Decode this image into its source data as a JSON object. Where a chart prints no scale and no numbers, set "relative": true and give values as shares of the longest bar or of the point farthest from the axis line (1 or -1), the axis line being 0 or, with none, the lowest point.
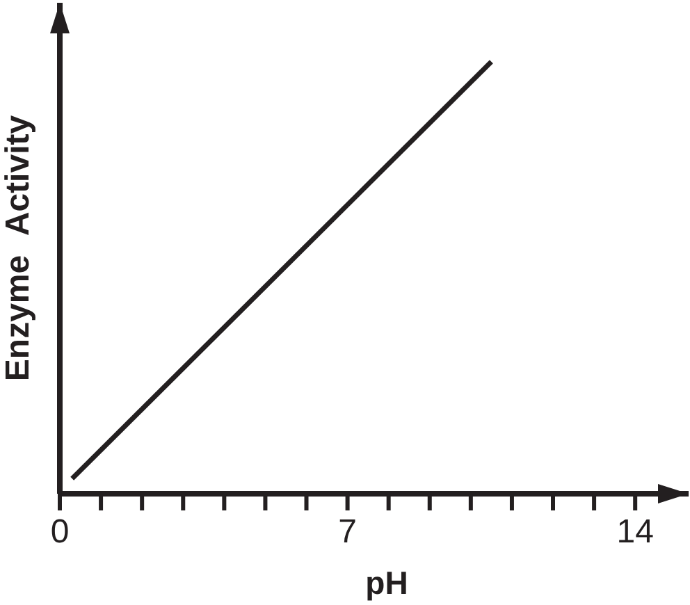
{
  "chart_data": {
    "type": "line",
    "xlabel": "pH",
    "ylabel": "Enzyme Activity",
    "relative": true,
    "xlim": [
      0,
      15.3
    ],
    "xticks": [
      0,
      {
        "value": 1,
        "label": null
      },
      {
        "value": 2,
        "label": null
      },
      {
        "value": 3,
        "label": null
      },
      {
        "value": 4,
        "label": null
      },
      {
        "value": 5,
        "label": null
      },
      {
        "value": 6,
        "label": null
      },
      7,
      {
        "value": 8,
        "label": null
      },
      {
        "value": 9,
        "label": null
      },
      {
        "value": 10,
        "label": null
      },
      {
        "value": 11,
        "label": null
      },
      {
        "value": 12,
        "label": null
      },
      {
        "value": 13,
        "label": null
      },
      14
    ],
    "series": [
      {
        "color": "#231f20",
        "x": [
          0.3,
          10.5
        ],
        "values": [
          0.035,
          1
        ]
      }
    ]
  }
}
